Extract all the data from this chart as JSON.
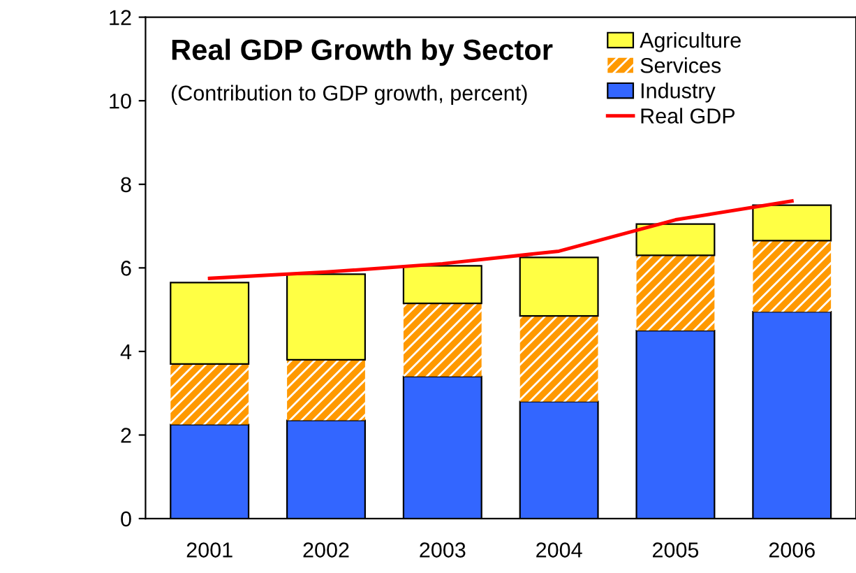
{
  "chart_data": {
    "type": "bar",
    "stacked": true,
    "title": "Real GDP Growth by Sector",
    "subtitle": "(Contribution to GDP growth, percent)",
    "categories": [
      "2001",
      "2002",
      "2003",
      "2004",
      "2005",
      "2006"
    ],
    "series": [
      {
        "name": "Industry",
        "color": "#3366ff",
        "values": [
          2.25,
          2.35,
          3.4,
          2.8,
          4.5,
          4.95
        ]
      },
      {
        "name": "Services",
        "color": "#ff9900",
        "values": [
          1.45,
          1.45,
          1.75,
          2.05,
          1.8,
          1.7
        ]
      },
      {
        "name": "Agriculture",
        "color": "#ffff44",
        "values": [
          1.95,
          2.05,
          0.9,
          1.4,
          0.75,
          0.85
        ]
      },
      {
        "name": "Real GDP",
        "type": "line",
        "color": "#ff0000",
        "values": [
          5.75,
          5.9,
          6.1,
          6.4,
          7.15,
          7.6
        ]
      }
    ],
    "ylim": [
      0,
      12
    ],
    "yticks": [
      0,
      2,
      4,
      6,
      8,
      10,
      12
    ],
    "grid": false,
    "legend": "top right"
  }
}
